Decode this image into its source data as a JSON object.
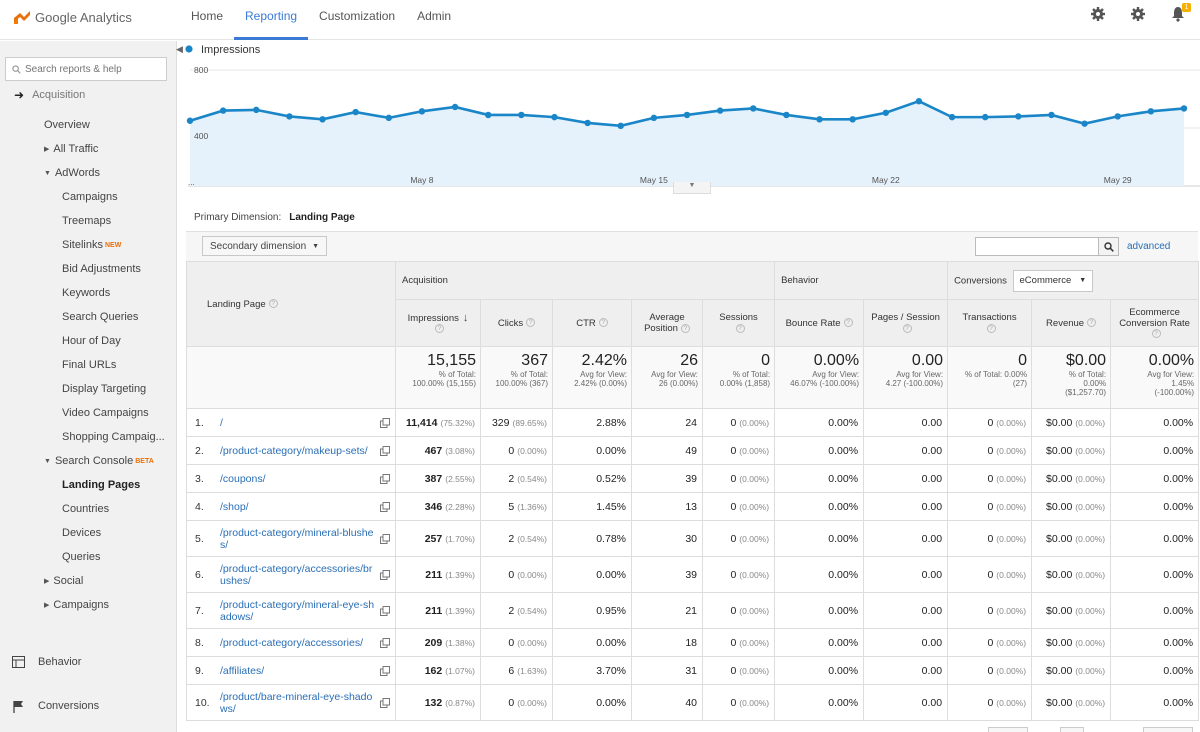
{
  "app": {
    "logo_text": "Google Analytics",
    "accent": "#3a7bd5",
    "link_color": "#2a6eb5",
    "chart_line_color": "#1a86c8"
  },
  "topnav": [
    {
      "label": "Home",
      "active": false
    },
    {
      "label": "Reporting",
      "active": true
    },
    {
      "label": "Customization",
      "active": false
    },
    {
      "label": "Admin",
      "active": false
    }
  ],
  "top_icons": {
    "bell_count": "1"
  },
  "sidebar": {
    "search_placeholder": "Search reports & help",
    "section_label": "Acquisition",
    "items": [
      {
        "label": "Overview",
        "level": 1
      },
      {
        "label": "All Traffic",
        "level": 2,
        "tri": "right"
      },
      {
        "label": "AdWords",
        "level": 2,
        "tri": "down"
      },
      {
        "label": "Campaigns",
        "level": 3
      },
      {
        "label": "Treemaps",
        "level": 3
      },
      {
        "label": "Sitelinks",
        "level": 3,
        "badge": "NEW"
      },
      {
        "label": "Bid Adjustments",
        "level": 3
      },
      {
        "label": "Keywords",
        "level": 3
      },
      {
        "label": "Search Queries",
        "level": 3
      },
      {
        "label": "Hour of Day",
        "level": 3
      },
      {
        "label": "Final URLs",
        "level": 3
      },
      {
        "label": "Display Targeting",
        "level": 3
      },
      {
        "label": "Video Campaigns",
        "level": 3
      },
      {
        "label": "Shopping Campaig...",
        "level": 3
      },
      {
        "label": "Search Console",
        "level": 2,
        "tri": "down",
        "badge": "BETA"
      },
      {
        "label": "Landing Pages",
        "level": 3,
        "bold": true
      },
      {
        "label": "Countries",
        "level": 3
      },
      {
        "label": "Devices",
        "level": 3
      },
      {
        "label": "Queries",
        "level": 3
      },
      {
        "label": "Social",
        "level": 2,
        "tri": "right"
      },
      {
        "label": "Campaigns",
        "level": 2,
        "tri": "right"
      }
    ],
    "behavior_label": "Behavior",
    "conversions_label": "Conversions"
  },
  "chart_data": {
    "type": "line",
    "title": "",
    "series": [
      {
        "name": "Impressions",
        "color": "#1a86c8",
        "values": [
          450,
          520,
          525,
          480,
          460,
          510,
          470,
          515,
          545,
          490,
          490,
          475,
          435,
          415,
          470,
          490,
          520,
          535,
          490,
          460,
          460,
          505,
          585,
          475,
          475,
          480,
          490,
          430,
          480,
          515,
          535
        ]
      }
    ],
    "x_tick_labels": [
      "May 8",
      "May 15",
      "May 22",
      "May 29"
    ],
    "x_tick_index": [
      7,
      14,
      21,
      28
    ],
    "y_tick_labels": [
      "800",
      "400"
    ],
    "ylim": [
      0,
      800
    ],
    "grid": true,
    "fill": "#e5f1fb",
    "left_label": "..."
  },
  "dimension": {
    "label": "Primary Dimension:",
    "value": "Landing Page"
  },
  "toolbar": {
    "secondary_dimension": "Secondary dimension",
    "advanced": "advanced"
  },
  "table": {
    "groups": {
      "acquisition": "Acquisition",
      "behavior": "Behavior",
      "conversions": "Conversions",
      "conversions_select": "eCommerce"
    },
    "headers": {
      "landing_page": "Landing Page",
      "impressions": "Impressions",
      "clicks": "Clicks",
      "ctr": "CTR",
      "avg_position": "Average Position",
      "sessions": "Sessions",
      "bounce_rate": "Bounce Rate",
      "pages_session": "Pages / Session",
      "transactions": "Transactions",
      "revenue": "Revenue",
      "ecomm_rate": "Ecommerce Conversion Rate"
    },
    "totals": {
      "impressions": {
        "big": "15,155",
        "sub1": "% of Total:",
        "sub2": "100.00% (15,155)"
      },
      "clicks": {
        "big": "367",
        "sub1": "% of Total:",
        "sub2": "100.00% (367)"
      },
      "ctr": {
        "big": "2.42%",
        "sub1": "Avg for View:",
        "sub2": "2.42% (0.00%)"
      },
      "avg_position": {
        "big": "26",
        "sub1": "Avg for View:",
        "sub2": "26 (0.00%)"
      },
      "sessions": {
        "big": "0",
        "sub1": "% of Total:",
        "sub2": "0.00% (1,858)"
      },
      "bounce_rate": {
        "big": "0.00%",
        "sub1": "Avg for View:",
        "sub2": "46.07% (-100.00%)"
      },
      "pages_session": {
        "big": "0.00",
        "sub1": "Avg for View:",
        "sub2": "4.27 (-100.00%)"
      },
      "transactions": {
        "big": "0",
        "sub1": "% of Total: 0.00%",
        "sub2": "(27)"
      },
      "revenue": {
        "big": "$0.00",
        "sub1": "% of Total:",
        "sub2": "0.00%",
        "sub3": "($1,257.70)"
      },
      "ecomm_rate": {
        "big": "0.00%",
        "sub1": "Avg for View:",
        "sub2": "1.45%",
        "sub3": "(-100.00%)"
      }
    },
    "rows": [
      {
        "n": "1.",
        "page": "/",
        "impressions": "11,414",
        "imp_pct": "(75.32%)",
        "clicks": "329",
        "clk_pct": "(89.65%)",
        "ctr": "2.88%",
        "pos": "24",
        "sessions": "0",
        "ses_pct": "(0.00%)",
        "bounce": "0.00%",
        "pps": "0.00",
        "trans": "0",
        "trans_pct": "(0.00%)",
        "rev": "$0.00",
        "rev_pct": "(0.00%)",
        "ecomm": "0.00%",
        "tall": false
      },
      {
        "n": "2.",
        "page": "/product-category/makeup-sets/",
        "impressions": "467",
        "imp_pct": "(3.08%)",
        "clicks": "0",
        "clk_pct": "(0.00%)",
        "ctr": "0.00%",
        "pos": "49",
        "sessions": "0",
        "ses_pct": "(0.00%)",
        "bounce": "0.00%",
        "pps": "0.00",
        "trans": "0",
        "trans_pct": "(0.00%)",
        "rev": "$0.00",
        "rev_pct": "(0.00%)",
        "ecomm": "0.00%",
        "tall": false
      },
      {
        "n": "3.",
        "page": "/coupons/",
        "impressions": "387",
        "imp_pct": "(2.55%)",
        "clicks": "2",
        "clk_pct": "(0.54%)",
        "ctr": "0.52%",
        "pos": "39",
        "sessions": "0",
        "ses_pct": "(0.00%)",
        "bounce": "0.00%",
        "pps": "0.00",
        "trans": "0",
        "trans_pct": "(0.00%)",
        "rev": "$0.00",
        "rev_pct": "(0.00%)",
        "ecomm": "0.00%",
        "tall": false
      },
      {
        "n": "4.",
        "page": "/shop/",
        "impressions": "346",
        "imp_pct": "(2.28%)",
        "clicks": "5",
        "clk_pct": "(1.36%)",
        "ctr": "1.45%",
        "pos": "13",
        "sessions": "0",
        "ses_pct": "(0.00%)",
        "bounce": "0.00%",
        "pps": "0.00",
        "trans": "0",
        "trans_pct": "(0.00%)",
        "rev": "$0.00",
        "rev_pct": "(0.00%)",
        "ecomm": "0.00%",
        "tall": false
      },
      {
        "n": "5.",
        "page": "/product-category/mineral-blushes/",
        "impressions": "257",
        "imp_pct": "(1.70%)",
        "clicks": "2",
        "clk_pct": "(0.54%)",
        "ctr": "0.78%",
        "pos": "30",
        "sessions": "0",
        "ses_pct": "(0.00%)",
        "bounce": "0.00%",
        "pps": "0.00",
        "trans": "0",
        "trans_pct": "(0.00%)",
        "rev": "$0.00",
        "rev_pct": "(0.00%)",
        "ecomm": "0.00%",
        "tall": true
      },
      {
        "n": "6.",
        "page": "/product-category/accessories/brushes/",
        "impressions": "211",
        "imp_pct": "(1.39%)",
        "clicks": "0",
        "clk_pct": "(0.00%)",
        "ctr": "0.00%",
        "pos": "39",
        "sessions": "0",
        "ses_pct": "(0.00%)",
        "bounce": "0.00%",
        "pps": "0.00",
        "trans": "0",
        "trans_pct": "(0.00%)",
        "rev": "$0.00",
        "rev_pct": "(0.00%)",
        "ecomm": "0.00%",
        "tall": true
      },
      {
        "n": "7.",
        "page": "/product-category/mineral-eye-shadows/",
        "impressions": "211",
        "imp_pct": "(1.39%)",
        "clicks": "2",
        "clk_pct": "(0.54%)",
        "ctr": "0.95%",
        "pos": "21",
        "sessions": "0",
        "ses_pct": "(0.00%)",
        "bounce": "0.00%",
        "pps": "0.00",
        "trans": "0",
        "trans_pct": "(0.00%)",
        "rev": "$0.00",
        "rev_pct": "(0.00%)",
        "ecomm": "0.00%",
        "tall": true
      },
      {
        "n": "8.",
        "page": "/product-category/accessories/",
        "impressions": "209",
        "imp_pct": "(1.38%)",
        "clicks": "0",
        "clk_pct": "(0.00%)",
        "ctr": "0.00%",
        "pos": "18",
        "sessions": "0",
        "ses_pct": "(0.00%)",
        "bounce": "0.00%",
        "pps": "0.00",
        "trans": "0",
        "trans_pct": "(0.00%)",
        "rev": "$0.00",
        "rev_pct": "(0.00%)",
        "ecomm": "0.00%",
        "tall": false
      },
      {
        "n": "9.",
        "page": "/affiliates/",
        "impressions": "162",
        "imp_pct": "(1.07%)",
        "clicks": "6",
        "clk_pct": "(1.63%)",
        "ctr": "3.70%",
        "pos": "31",
        "sessions": "0",
        "ses_pct": "(0.00%)",
        "bounce": "0.00%",
        "pps": "0.00",
        "trans": "0",
        "trans_pct": "(0.00%)",
        "rev": "$0.00",
        "rev_pct": "(0.00%)",
        "ecomm": "0.00%",
        "tall": false
      },
      {
        "n": "10.",
        "page": "/product/bare-mineral-eye-shadows/",
        "impressions": "132",
        "imp_pct": "(0.87%)",
        "clicks": "0",
        "clk_pct": "(0.00%)",
        "ctr": "0.00%",
        "pos": "40",
        "sessions": "0",
        "ses_pct": "(0.00%)",
        "bounce": "0.00%",
        "pps": "0.00",
        "trans": "0",
        "trans_pct": "(0.00%)",
        "rev": "$0.00",
        "rev_pct": "(0.00%)",
        "ecomm": "0.00%",
        "tall": true
      }
    ]
  }
}
